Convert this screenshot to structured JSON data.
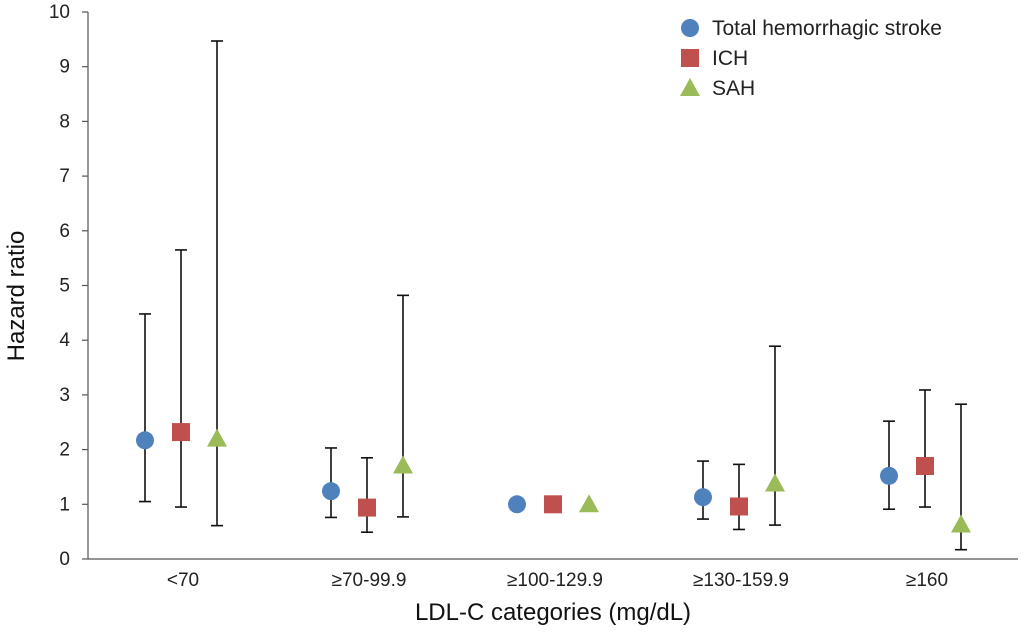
{
  "chart_data": {
    "type": "scatter",
    "xlabel": "LDL-C categories (mg/dL)",
    "ylabel": "Hazard  ratio",
    "ylim": [
      0,
      10
    ],
    "yticks": [
      "0",
      "1",
      "2",
      "3",
      "4",
      "5",
      "6",
      "7",
      "8",
      "9",
      "10"
    ],
    "categories": [
      "<70",
      "≥70-99.9",
      "≥100-129.9",
      "≥130-159.9",
      "≥160"
    ],
    "grid": false,
    "legend_position": "top-right",
    "series": [
      {
        "name": "Total hemorrhagic stroke",
        "marker": "circle",
        "color": "#4f81bd",
        "values": [
          2.17,
          1.24,
          1.0,
          1.13,
          1.52
        ],
        "lower": [
          1.05,
          0.76,
          null,
          0.73,
          0.91
        ],
        "upper": [
          4.48,
          2.03,
          null,
          1.79,
          2.52
        ]
      },
      {
        "name": "ICH",
        "marker": "square",
        "color": "#c0504d",
        "values": [
          2.32,
          0.94,
          1.0,
          0.96,
          1.7
        ],
        "lower": [
          0.95,
          0.49,
          null,
          0.54,
          0.95
        ],
        "upper": [
          5.65,
          1.85,
          null,
          1.73,
          3.09
        ]
      },
      {
        "name": "SAH",
        "marker": "triangle",
        "color": "#9bbb59",
        "values": [
          2.2,
          1.71,
          1.0,
          1.38,
          0.63
        ],
        "lower": [
          0.61,
          0.77,
          null,
          0.62,
          0.17
        ],
        "upper": [
          9.47,
          4.82,
          null,
          3.89,
          2.83
        ]
      }
    ]
  }
}
